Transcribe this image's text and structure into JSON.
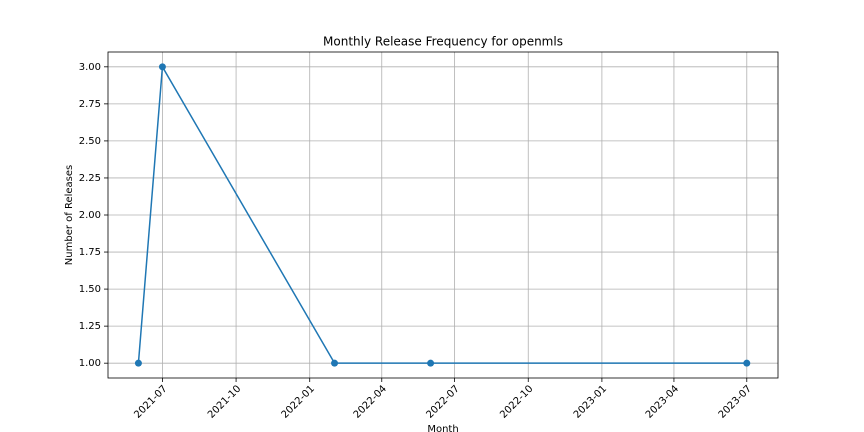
{
  "chart_data": {
    "type": "line",
    "title": "Monthly Release Frequency for openmls",
    "x_label": "Month",
    "y_label": "Number of Releases",
    "x": [
      "2021-06",
      "2021-07",
      "2022-02",
      "2022-06",
      "2023-07"
    ],
    "series": [
      {
        "name": "openmls",
        "color": "#1f77b4",
        "values": [
          1,
          3,
          1,
          1,
          1
        ]
      }
    ],
    "xlim": [
      "2021-04-24",
      "2023-08-09"
    ],
    "xticks": [
      "2021-07",
      "2021-10",
      "2022-01",
      "2022-04",
      "2022-07",
      "2022-10",
      "2023-01",
      "2023-04",
      "2023-07"
    ],
    "ylim": [
      0.9,
      3.1
    ],
    "yticks": [
      {
        "value": 1,
        "label": "1.00"
      },
      {
        "value": 1.25,
        "label": "1.25"
      },
      {
        "value": 1.5,
        "label": "1.50"
      },
      {
        "value": 1.75,
        "label": "1.75"
      },
      {
        "value": 2,
        "label": "2.00"
      },
      {
        "value": 2.25,
        "label": "2.25"
      },
      {
        "value": 2.5,
        "label": "2.50"
      },
      {
        "value": 2.75,
        "label": "2.75"
      },
      {
        "value": 3,
        "label": "3.00"
      }
    ],
    "grid": true
  }
}
